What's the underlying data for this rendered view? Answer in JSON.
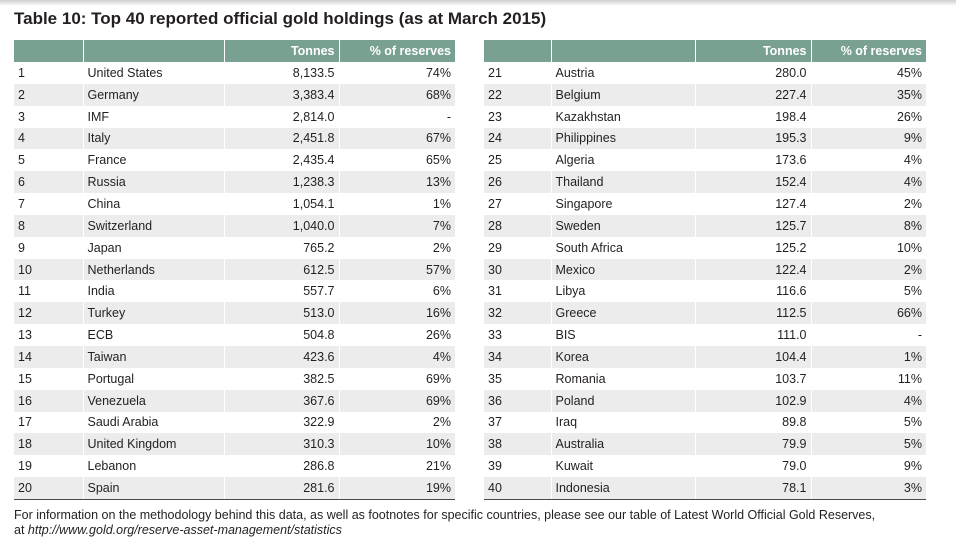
{
  "title": "Table 10: Top 40 reported official gold holdings (as at March 2015)",
  "columns": {
    "tonnes": "Tonnes",
    "pct": "% of reserves"
  },
  "left_rows": [
    {
      "rank": "1",
      "country": "United States",
      "tonnes": "8,133.5",
      "pct": "74%"
    },
    {
      "rank": "2",
      "country": "Germany",
      "tonnes": "3,383.4",
      "pct": "68%"
    },
    {
      "rank": "3",
      "country": "IMF",
      "tonnes": "2,814.0",
      "pct": "-"
    },
    {
      "rank": "4",
      "country": "Italy",
      "tonnes": "2,451.8",
      "pct": "67%"
    },
    {
      "rank": "5",
      "country": "France",
      "tonnes": "2,435.4",
      "pct": "65%"
    },
    {
      "rank": "6",
      "country": "Russia",
      "tonnes": "1,238.3",
      "pct": "13%"
    },
    {
      "rank": "7",
      "country": "China",
      "tonnes": "1,054.1",
      "pct": "1%"
    },
    {
      "rank": "8",
      "country": "Switzerland",
      "tonnes": "1,040.0",
      "pct": "7%"
    },
    {
      "rank": "9",
      "country": "Japan",
      "tonnes": "765.2",
      "pct": "2%"
    },
    {
      "rank": "10",
      "country": "Netherlands",
      "tonnes": "612.5",
      "pct": "57%"
    },
    {
      "rank": "11",
      "country": "India",
      "tonnes": "557.7",
      "pct": "6%"
    },
    {
      "rank": "12",
      "country": "Turkey",
      "tonnes": "513.0",
      "pct": "16%"
    },
    {
      "rank": "13",
      "country": "ECB",
      "tonnes": "504.8",
      "pct": "26%"
    },
    {
      "rank": "14",
      "country": "Taiwan",
      "tonnes": "423.6",
      "pct": "4%"
    },
    {
      "rank": "15",
      "country": "Portugal",
      "tonnes": "382.5",
      "pct": "69%"
    },
    {
      "rank": "16",
      "country": "Venezuela",
      "tonnes": "367.6",
      "pct": "69%"
    },
    {
      "rank": "17",
      "country": "Saudi Arabia",
      "tonnes": "322.9",
      "pct": "2%"
    },
    {
      "rank": "18",
      "country": "United Kingdom",
      "tonnes": "310.3",
      "pct": "10%"
    },
    {
      "rank": "19",
      "country": "Lebanon",
      "tonnes": "286.8",
      "pct": "21%"
    },
    {
      "rank": "20",
      "country": "Spain",
      "tonnes": "281.6",
      "pct": "19%"
    }
  ],
  "right_rows": [
    {
      "rank": "21",
      "country": "Austria",
      "tonnes": "280.0",
      "pct": "45%"
    },
    {
      "rank": "22",
      "country": "Belgium",
      "tonnes": "227.4",
      "pct": "35%"
    },
    {
      "rank": "23",
      "country": "Kazakhstan",
      "tonnes": "198.4",
      "pct": "26%"
    },
    {
      "rank": "24",
      "country": "Philippines",
      "tonnes": "195.3",
      "pct": "9%"
    },
    {
      "rank": "25",
      "country": "Algeria",
      "tonnes": "173.6",
      "pct": "4%"
    },
    {
      "rank": "26",
      "country": "Thailand",
      "tonnes": "152.4",
      "pct": "4%"
    },
    {
      "rank": "27",
      "country": "Singapore",
      "tonnes": "127.4",
      "pct": "2%"
    },
    {
      "rank": "28",
      "country": "Sweden",
      "tonnes": "125.7",
      "pct": "8%"
    },
    {
      "rank": "29",
      "country": "South Africa",
      "tonnes": "125.2",
      "pct": "10%"
    },
    {
      "rank": "30",
      "country": "Mexico",
      "tonnes": "122.4",
      "pct": "2%"
    },
    {
      "rank": "31",
      "country": "Libya",
      "tonnes": "116.6",
      "pct": "5%"
    },
    {
      "rank": "32",
      "country": "Greece",
      "tonnes": "112.5",
      "pct": "66%"
    },
    {
      "rank": "33",
      "country": "BIS",
      "tonnes": "111.0",
      "pct": "-"
    },
    {
      "rank": "34",
      "country": "Korea",
      "tonnes": "104.4",
      "pct": "1%"
    },
    {
      "rank": "35",
      "country": "Romania",
      "tonnes": "103.7",
      "pct": "11%"
    },
    {
      "rank": "36",
      "country": "Poland",
      "tonnes": "102.9",
      "pct": "4%"
    },
    {
      "rank": "37",
      "country": "Iraq",
      "tonnes": "89.8",
      "pct": "5%"
    },
    {
      "rank": "38",
      "country": "Australia",
      "tonnes": "79.9",
      "pct": "5%"
    },
    {
      "rank": "39",
      "country": "Kuwait",
      "tonnes": "79.0",
      "pct": "9%"
    },
    {
      "rank": "40",
      "country": "Indonesia",
      "tonnes": "78.1",
      "pct": "3%"
    }
  ],
  "footnote": {
    "line1": "For information on the methodology behind this data, as well as footnotes for specific countries, please see our table of Latest World Official Gold Reserves,",
    "line2_prefix": "at ",
    "url": "http://www.gold.org/reserve-asset-management/statistics"
  }
}
